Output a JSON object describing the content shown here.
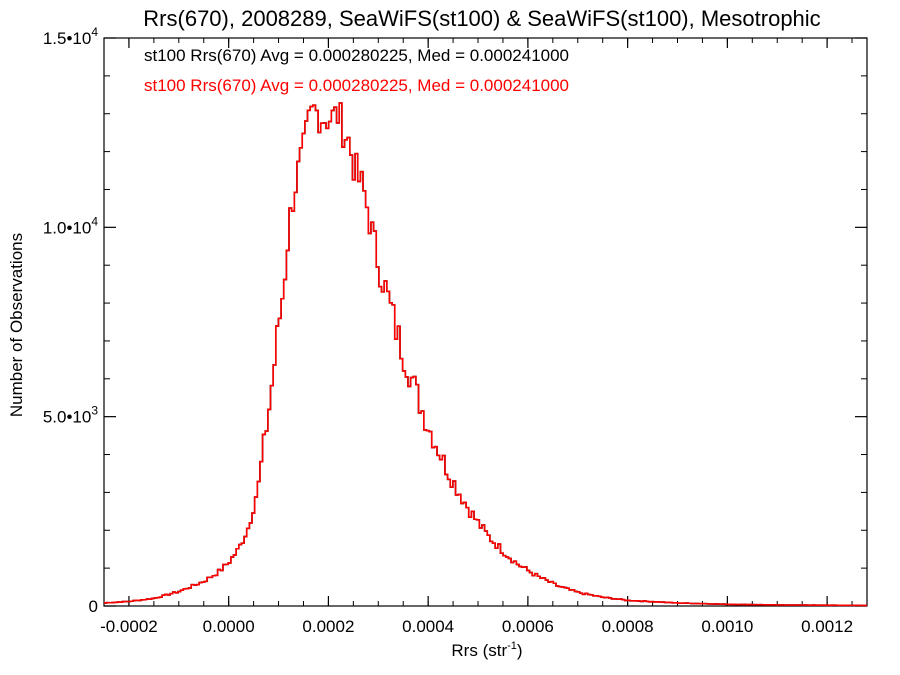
{
  "chart_data": {
    "type": "histogram",
    "title": "Rrs(670), 2008289, SeaWiFS(st100) & SeaWiFS(st100), Mesotrophic",
    "xlabel": "Rrs (str",
    "xlabel_sup": "-1",
    "xlabel_close": ")",
    "ylabel": "Number of Observations",
    "xlim": [
      -0.00025,
      0.00128
    ],
    "ylim": [
      0,
      15000
    ],
    "grid": false,
    "legend_placement": "top-left",
    "x_tick_values": [
      -0.0002,
      0.0,
      0.0002,
      0.0004,
      0.0006,
      0.0008,
      0.001,
      0.0012
    ],
    "x_tick_labels": [
      "-0.0002",
      "0.0000",
      "0.0002",
      "0.0004",
      "0.0006",
      "0.0008",
      "0.0010",
      "0.0012"
    ],
    "y_tick_values": [
      0,
      5000,
      10000,
      15000
    ],
    "y_ticks": [
      {
        "main": "0",
        "sup": ""
      },
      {
        "main": "5.0•10",
        "sup": "3"
      },
      {
        "main": "1.0•10",
        "sup": "4"
      },
      {
        "main": "1.5•10",
        "sup": "4"
      }
    ],
    "bin_width": 5.3e-06,
    "series": [
      {
        "name": "st100 Rrs(670) Avg = 0.000280225, Med = 0.000241000",
        "color": "#000000",
        "anchors": [
          [
            -0.00025,
            80
          ],
          [
            -0.0002,
            120
          ],
          [
            -0.00015,
            200
          ],
          [
            -0.0001,
            380
          ],
          [
            -5e-05,
            650
          ],
          [
            -2e-05,
            900
          ],
          [
            0.0,
            1150
          ],
          [
            2e-05,
            1500
          ],
          [
            4e-05,
            2100
          ],
          [
            6e-05,
            3200
          ],
          [
            7e-05,
            4200
          ],
          [
            8e-05,
            5100
          ],
          [
            9e-05,
            6200
          ],
          [
            0.0001,
            7400
          ],
          [
            0.00011,
            8400
          ],
          [
            0.00012,
            9900
          ],
          [
            0.00013,
            10900
          ],
          [
            0.00014,
            11500
          ],
          [
            0.00015,
            12000
          ],
          [
            0.00016,
            12700
          ],
          [
            0.00017,
            13100
          ],
          [
            0.00018,
            13000
          ],
          [
            0.00019,
            12900
          ],
          [
            0.0002,
            12900
          ],
          [
            0.00021,
            12900
          ],
          [
            0.00022,
            13000
          ],
          [
            0.00023,
            12600
          ],
          [
            0.00024,
            12300
          ],
          [
            0.00025,
            11700
          ],
          [
            0.00026,
            11300
          ],
          [
            0.00027,
            11000
          ],
          [
            0.00028,
            10400
          ],
          [
            0.00029,
            9700
          ],
          [
            0.0003,
            9100
          ],
          [
            0.00031,
            8600
          ],
          [
            0.00032,
            8100
          ],
          [
            0.00033,
            7600
          ],
          [
            0.00034,
            7100
          ],
          [
            0.00035,
            6700
          ],
          [
            0.00036,
            6300
          ],
          [
            0.00037,
            5900
          ],
          [
            0.00038,
            5500
          ],
          [
            0.00039,
            5100
          ],
          [
            0.0004,
            4750
          ],
          [
            0.00042,
            4150
          ],
          [
            0.00044,
            3550
          ],
          [
            0.00046,
            3050
          ],
          [
            0.00048,
            2600
          ],
          [
            0.0005,
            2200
          ],
          [
            0.00052,
            1850
          ],
          [
            0.00055,
            1450
          ],
          [
            0.00058,
            1100
          ],
          [
            0.00062,
            780
          ],
          [
            0.00066,
            530
          ],
          [
            0.0007,
            360
          ],
          [
            0.00075,
            230
          ],
          [
            0.0008,
            150
          ],
          [
            0.0009,
            80
          ],
          [
            0.001,
            45
          ],
          [
            0.0011,
            28
          ],
          [
            0.00128,
            15
          ]
        ]
      },
      {
        "name": "st100 Rrs(670) Avg = 0.000280225, Med = 0.000241000",
        "color": "#ff0000"
      }
    ]
  }
}
